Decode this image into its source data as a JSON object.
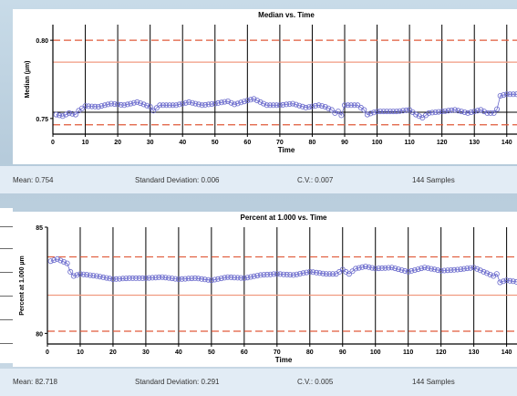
{
  "chart_data": [
    {
      "type": "scatter",
      "title": "Median vs. Time",
      "xlabel": "Time",
      "ylabel": "Median (µm)",
      "xlim": [
        0,
        144
      ],
      "ylim": [
        0.74,
        0.81
      ],
      "x_ticks": [
        0,
        10,
        20,
        30,
        40,
        50,
        60,
        70,
        80,
        90,
        100,
        110,
        120,
        130,
        140
      ],
      "y_ticks": [
        {
          "value": 0.8,
          "label": "0.80"
        },
        {
          "value": 0.75,
          "label": "0.75"
        }
      ],
      "control_lines": [
        {
          "value": 0.8,
          "kind": "dashed"
        },
        {
          "value": 0.786,
          "kind": "solid"
        },
        {
          "value": 0.754,
          "kind": "black"
        },
        {
          "value": 0.746,
          "kind": "dashed"
        }
      ],
      "anchors": [
        [
          1,
          0.7525
        ],
        [
          3,
          0.7515
        ],
        [
          5,
          0.7535
        ],
        [
          7,
          0.7525
        ],
        [
          8,
          0.755
        ],
        [
          10,
          0.758
        ],
        [
          14,
          0.7575
        ],
        [
          18,
          0.7595
        ],
        [
          22,
          0.7585
        ],
        [
          26,
          0.7605
        ],
        [
          30,
          0.7575
        ],
        [
          31,
          0.755
        ],
        [
          33,
          0.7585
        ],
        [
          38,
          0.7585
        ],
        [
          42,
          0.7605
        ],
        [
          46,
          0.7585
        ],
        [
          50,
          0.7595
        ],
        [
          54,
          0.761
        ],
        [
          56,
          0.759
        ],
        [
          60,
          0.7615
        ],
        [
          62,
          0.7625
        ],
        [
          64,
          0.7605
        ],
        [
          66,
          0.7585
        ],
        [
          70,
          0.7585
        ],
        [
          74,
          0.7595
        ],
        [
          78,
          0.757
        ],
        [
          82,
          0.7585
        ],
        [
          84,
          0.7575
        ],
        [
          86,
          0.7555
        ],
        [
          87,
          0.7535
        ],
        [
          88,
          0.7545
        ],
        [
          89,
          0.752
        ],
        [
          90,
          0.7585
        ],
        [
          94,
          0.7585
        ],
        [
          96,
          0.7555
        ],
        [
          97,
          0.7525
        ],
        [
          100,
          0.7545
        ],
        [
          106,
          0.7545
        ],
        [
          110,
          0.7555
        ],
        [
          112,
          0.7525
        ],
        [
          114,
          0.7505
        ],
        [
          116,
          0.7535
        ],
        [
          120,
          0.7545
        ],
        [
          124,
          0.7555
        ],
        [
          128,
          0.7535
        ],
        [
          132,
          0.7555
        ],
        [
          134,
          0.7535
        ],
        [
          136,
          0.7535
        ],
        [
          137,
          0.756
        ],
        [
          138,
          0.7645
        ],
        [
          140,
          0.7655
        ],
        [
          144,
          0.7655
        ]
      ]
    },
    {
      "type": "scatter",
      "title": "Percent at 1.000 vs. Time",
      "xlabel": "Time",
      "ylabel": "Percent at 1.000 µm",
      "xlim": [
        0,
        144
      ],
      "ylim": [
        79.5,
        85
      ],
      "x_ticks": [
        0,
        10,
        20,
        30,
        40,
        50,
        60,
        70,
        80,
        90,
        100,
        110,
        120,
        130,
        140
      ],
      "y_ticks": [
        {
          "value": 85,
          "label": "85"
        },
        {
          "value": 80,
          "label": "80"
        }
      ],
      "control_lines": [
        {
          "value": 83.6,
          "kind": "dashed"
        },
        {
          "value": 81.8,
          "kind": "solid"
        },
        {
          "value": 80.1,
          "kind": "dashed"
        }
      ],
      "anchors": [
        [
          1,
          83.4
        ],
        [
          3,
          83.5
        ],
        [
          6,
          83.3
        ],
        [
          7,
          82.9
        ],
        [
          8,
          82.7
        ],
        [
          10,
          82.8
        ],
        [
          15,
          82.7
        ],
        [
          20,
          82.55
        ],
        [
          25,
          82.6
        ],
        [
          30,
          82.6
        ],
        [
          35,
          82.65
        ],
        [
          40,
          82.55
        ],
        [
          45,
          82.6
        ],
        [
          50,
          82.5
        ],
        [
          55,
          82.65
        ],
        [
          60,
          82.6
        ],
        [
          65,
          82.75
        ],
        [
          70,
          82.8
        ],
        [
          75,
          82.75
        ],
        [
          80,
          82.9
        ],
        [
          85,
          82.8
        ],
        [
          88,
          82.8
        ],
        [
          90,
          83.0
        ],
        [
          92,
          82.8
        ],
        [
          94,
          83.05
        ],
        [
          97,
          83.15
        ],
        [
          100,
          83.05
        ],
        [
          105,
          83.1
        ],
        [
          110,
          82.9
        ],
        [
          115,
          83.1
        ],
        [
          120,
          82.95
        ],
        [
          125,
          83.0
        ],
        [
          130,
          83.1
        ],
        [
          133,
          82.9
        ],
        [
          136,
          82.7
        ],
        [
          137,
          82.8
        ],
        [
          138,
          82.4
        ],
        [
          140,
          82.5
        ],
        [
          144,
          82.4
        ]
      ]
    }
  ],
  "stats_top": {
    "mean": "Mean: 0.754",
    "std": "Standard Deviation: 0.006",
    "cv": "C.V.: 0.007",
    "samples": "144 Samples"
  },
  "stats_bottom": {
    "mean": "Mean: 82.718",
    "std": "Standard Deviation: 0.291",
    "cv": "C.V.: 0.005",
    "samples": "144 Samples"
  },
  "colors": {
    "point": "#6a6acc",
    "control_dashed": "#e05a3a",
    "control_solid": "#f09a80",
    "axis": "#000000"
  }
}
